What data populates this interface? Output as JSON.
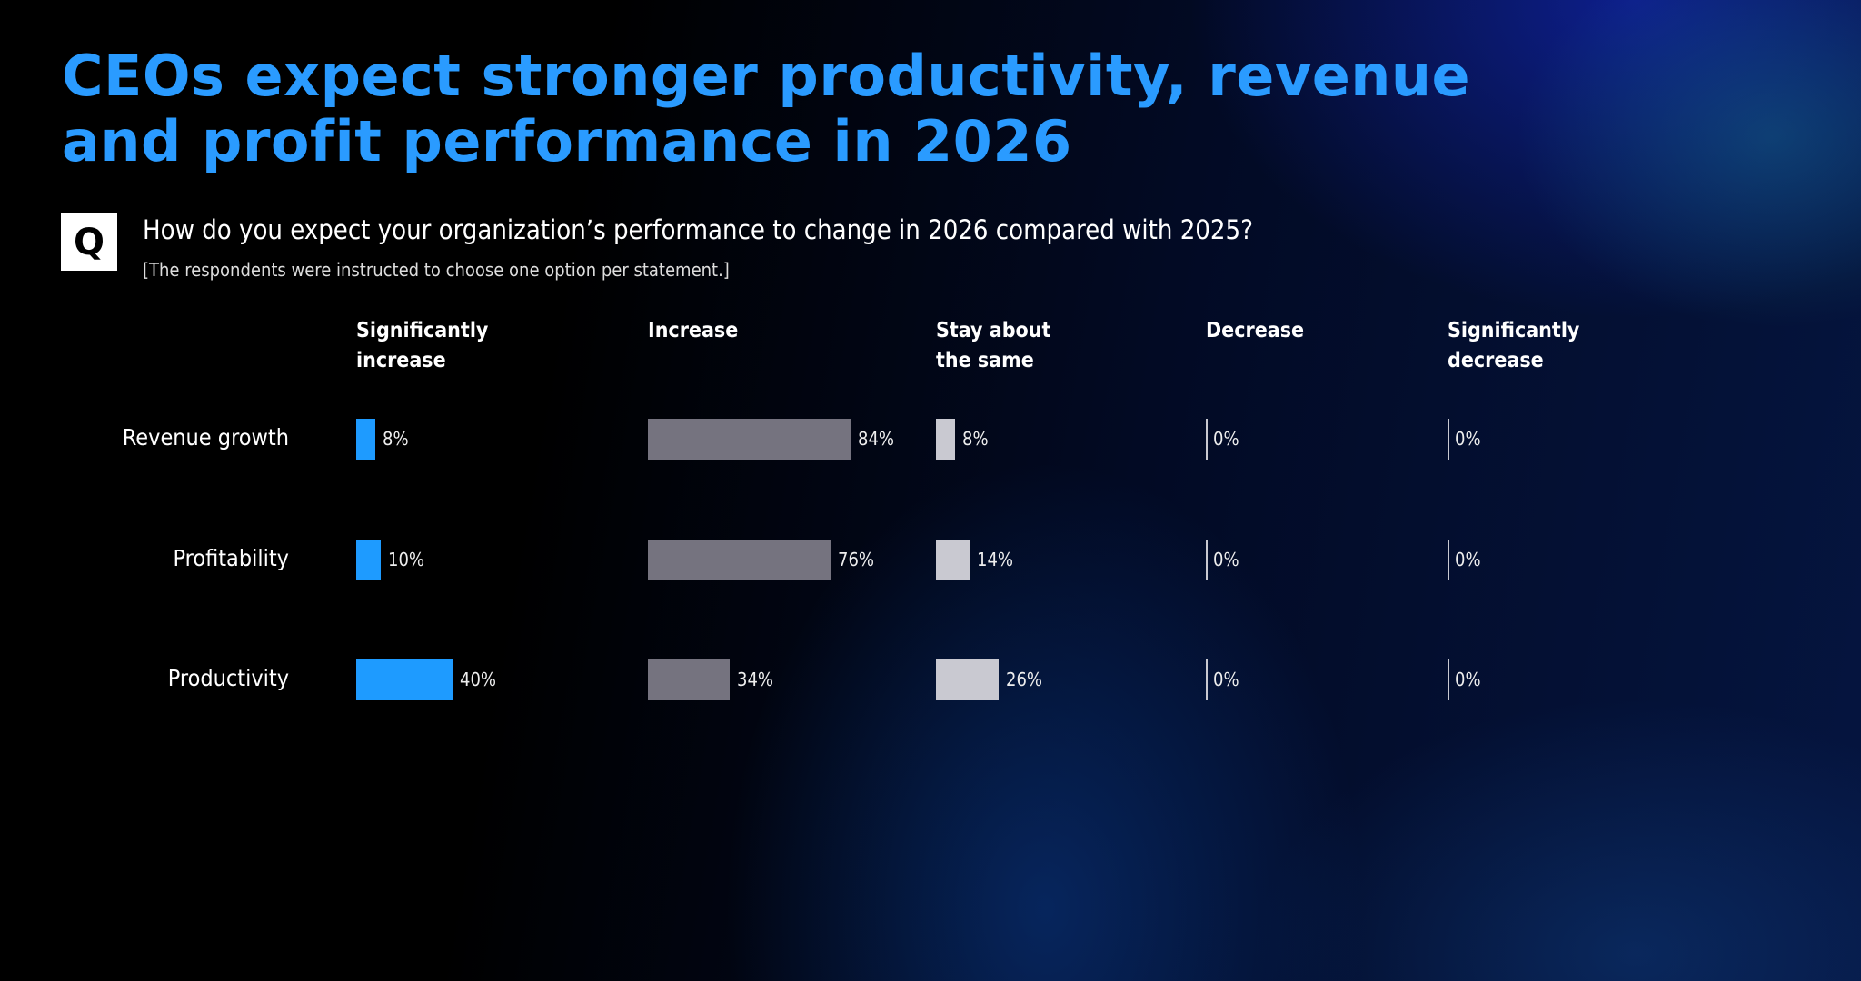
{
  "title_lines": [
    "CEOs expect stronger productivity, revenue",
    "and profit performance in 2026"
  ],
  "question_icon": "Q",
  "question": "How do you expect your organization’s performance to change in 2026 compared with 2025?",
  "note": "[The respondents were instructed to choose one option per statement.]",
  "chart_data": {
    "type": "bar",
    "layout": "small-multiples horizontal bars",
    "columns": [
      "Significantly\nincrease",
      "Increase",
      "Stay about\nthe same",
      "Decrease",
      "Significantly\ndecrease"
    ],
    "categories": [
      "Revenue growth",
      "Profitability",
      "Productivity"
    ],
    "series": [
      {
        "name": "Significantly increase",
        "values": [
          8,
          10,
          40
        ],
        "labels": [
          "8%",
          "10%",
          "40%"
        ],
        "color": "#1e9bff"
      },
      {
        "name": "Increase",
        "values": [
          84,
          76,
          34
        ],
        "labels": [
          "84%",
          "76%",
          "34%"
        ],
        "color": "#75737f"
      },
      {
        "name": "Stay about the same",
        "values": [
          8,
          14,
          26
        ],
        "labels": [
          "8%",
          "14%",
          "26%"
        ],
        "color": "#c9c9d1"
      },
      {
        "name": "Decrease",
        "values": [
          0,
          0,
          0
        ],
        "labels": [
          "0%",
          "0%",
          "0%"
        ],
        "color": "#c9c9d1"
      },
      {
        "name": "Significantly decrease",
        "values": [
          0,
          0,
          0
        ],
        "labels": [
          "0%",
          "0%",
          "0%"
        ],
        "color": "#c9c9d1"
      }
    ]
  }
}
